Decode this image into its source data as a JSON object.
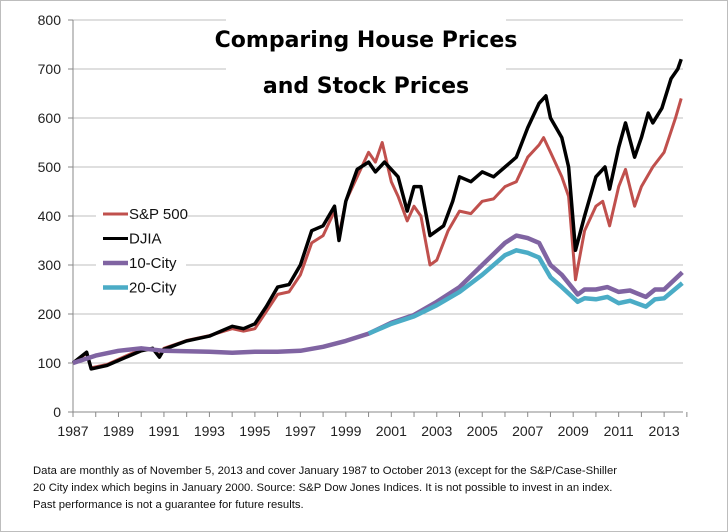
{
  "chart_data": {
    "type": "line",
    "title_lines": [
      "Comparing House Prices",
      "and Stock Prices"
    ],
    "xlabel": "",
    "ylabel": "",
    "xlim": [
      1987,
      2013.83
    ],
    "ylim": [
      0,
      800
    ],
    "x_ticks": [
      "1987",
      "1989",
      "1991",
      "1993",
      "1995",
      "1997",
      "1999",
      "2001",
      "2003",
      "2005",
      "2007",
      "2009",
      "2011",
      "2013"
    ],
    "y_ticks": [
      "0",
      "100",
      "200",
      "300",
      "400",
      "500",
      "600",
      "700",
      "800"
    ],
    "grid": true,
    "legend_position": "left-middle",
    "series": [
      {
        "name": "S&P 500",
        "color": "#c0504d",
        "points": [
          [
            1987,
            100
          ],
          [
            1987.6,
            120
          ],
          [
            1987.8,
            90
          ],
          [
            1988.5,
            97
          ],
          [
            1989.5,
            118
          ],
          [
            1990,
            126
          ],
          [
            1990.5,
            128
          ],
          [
            1990.8,
            115
          ],
          [
            1991,
            130
          ],
          [
            1992,
            146
          ],
          [
            1993,
            156
          ],
          [
            1994,
            170
          ],
          [
            1994.5,
            165
          ],
          [
            1995,
            170
          ],
          [
            1995.5,
            205
          ],
          [
            1996,
            240
          ],
          [
            1996.5,
            245
          ],
          [
            1997,
            280
          ],
          [
            1997.5,
            345
          ],
          [
            1998,
            360
          ],
          [
            1998.5,
            410
          ],
          [
            1998.7,
            360
          ],
          [
            1999,
            430
          ],
          [
            1999.5,
            480
          ],
          [
            2000,
            530
          ],
          [
            2000.3,
            510
          ],
          [
            2000.6,
            550
          ],
          [
            2001,
            470
          ],
          [
            2001.3,
            440
          ],
          [
            2001.7,
            390
          ],
          [
            2002,
            420
          ],
          [
            2002.3,
            400
          ],
          [
            2002.7,
            300
          ],
          [
            2003,
            310
          ],
          [
            2003.5,
            370
          ],
          [
            2004,
            410
          ],
          [
            2004.5,
            405
          ],
          [
            2005,
            430
          ],
          [
            2005.5,
            435
          ],
          [
            2006,
            460
          ],
          [
            2006.5,
            470
          ],
          [
            2007,
            520
          ],
          [
            2007.5,
            545
          ],
          [
            2007.7,
            560
          ],
          [
            2008,
            530
          ],
          [
            2008.5,
            480
          ],
          [
            2008.8,
            440
          ],
          [
            2009.1,
            270
          ],
          [
            2009.5,
            370
          ],
          [
            2010,
            420
          ],
          [
            2010.3,
            430
          ],
          [
            2010.6,
            380
          ],
          [
            2011,
            460
          ],
          [
            2011.3,
            495
          ],
          [
            2011.7,
            420
          ],
          [
            2012,
            460
          ],
          [
            2012.5,
            500
          ],
          [
            2013,
            530
          ],
          [
            2013.5,
            600
          ],
          [
            2013.75,
            640
          ]
        ]
      },
      {
        "name": "DJIA",
        "color": "#000000",
        "points": [
          [
            1987,
            100
          ],
          [
            1987.6,
            122
          ],
          [
            1987.8,
            88
          ],
          [
            1988.5,
            95
          ],
          [
            1989.5,
            115
          ],
          [
            1990,
            125
          ],
          [
            1990.5,
            130
          ],
          [
            1990.8,
            112
          ],
          [
            1991,
            128
          ],
          [
            1992,
            145
          ],
          [
            1993,
            155
          ],
          [
            1994,
            175
          ],
          [
            1994.5,
            170
          ],
          [
            1995,
            180
          ],
          [
            1995.5,
            215
          ],
          [
            1996,
            255
          ],
          [
            1996.5,
            260
          ],
          [
            1997,
            300
          ],
          [
            1997.5,
            370
          ],
          [
            1998,
            380
          ],
          [
            1998.5,
            420
          ],
          [
            1998.7,
            350
          ],
          [
            1999,
            430
          ],
          [
            1999.5,
            495
          ],
          [
            2000,
            510
          ],
          [
            2000.3,
            490
          ],
          [
            2000.7,
            510
          ],
          [
            2001,
            495
          ],
          [
            2001.3,
            480
          ],
          [
            2001.7,
            410
          ],
          [
            2002,
            460
          ],
          [
            2002.3,
            460
          ],
          [
            2002.7,
            360
          ],
          [
            2003,
            370
          ],
          [
            2003.3,
            380
          ],
          [
            2003.7,
            430
          ],
          [
            2004,
            480
          ],
          [
            2004.5,
            470
          ],
          [
            2005,
            490
          ],
          [
            2005.5,
            480
          ],
          [
            2006,
            500
          ],
          [
            2006.5,
            520
          ],
          [
            2007,
            580
          ],
          [
            2007.5,
            630
          ],
          [
            2007.8,
            645
          ],
          [
            2008,
            600
          ],
          [
            2008.5,
            560
          ],
          [
            2008.8,
            500
          ],
          [
            2009.1,
            330
          ],
          [
            2009.5,
            400
          ],
          [
            2010,
            480
          ],
          [
            2010.4,
            500
          ],
          [
            2010.6,
            455
          ],
          [
            2011,
            540
          ],
          [
            2011.3,
            590
          ],
          [
            2011.7,
            520
          ],
          [
            2012,
            560
          ],
          [
            2012.3,
            610
          ],
          [
            2012.5,
            590
          ],
          [
            2012.9,
            620
          ],
          [
            2013.3,
            680
          ],
          [
            2013.6,
            700
          ],
          [
            2013.75,
            720
          ]
        ]
      },
      {
        "name": "10-City",
        "color": "#8064a2",
        "points": [
          [
            1987,
            100
          ],
          [
            1988,
            115
          ],
          [
            1989,
            125
          ],
          [
            1990,
            130
          ],
          [
            1991,
            125
          ],
          [
            1992,
            124
          ],
          [
            1993,
            123
          ],
          [
            1994,
            121
          ],
          [
            1995,
            123
          ],
          [
            1996,
            123
          ],
          [
            1997,
            125
          ],
          [
            1998,
            133
          ],
          [
            1999,
            145
          ],
          [
            2000,
            160
          ],
          [
            2001,
            182
          ],
          [
            2002,
            198
          ],
          [
            2003,
            225
          ],
          [
            2004,
            255
          ],
          [
            2005,
            300
          ],
          [
            2006,
            345
          ],
          [
            2006.5,
            360
          ],
          [
            2007,
            355
          ],
          [
            2007.5,
            345
          ],
          [
            2008,
            300
          ],
          [
            2008.5,
            280
          ],
          [
            2009.2,
            240
          ],
          [
            2009.5,
            250
          ],
          [
            2010,
            250
          ],
          [
            2010.5,
            255
          ],
          [
            2011,
            245
          ],
          [
            2011.5,
            248
          ],
          [
            2012.2,
            235
          ],
          [
            2012.6,
            250
          ],
          [
            2013,
            250
          ],
          [
            2013.8,
            285
          ]
        ]
      },
      {
        "name": "20-City",
        "color": "#4bacc6",
        "points": [
          [
            2000,
            160
          ],
          [
            2001,
            180
          ],
          [
            2002,
            195
          ],
          [
            2003,
            218
          ],
          [
            2004,
            245
          ],
          [
            2005,
            280
          ],
          [
            2006,
            320
          ],
          [
            2006.5,
            330
          ],
          [
            2007,
            325
          ],
          [
            2007.5,
            315
          ],
          [
            2008,
            275
          ],
          [
            2008.5,
            255
          ],
          [
            2009.2,
            225
          ],
          [
            2009.5,
            232
          ],
          [
            2010,
            230
          ],
          [
            2010.5,
            235
          ],
          [
            2011,
            222
          ],
          [
            2011.5,
            227
          ],
          [
            2012.2,
            215
          ],
          [
            2012.6,
            230
          ],
          [
            2013,
            232
          ],
          [
            2013.8,
            263
          ]
        ]
      }
    ]
  },
  "footnote": [
    "Data are monthly as of November 5, 2013 and cover January 1987 to October 2013 (except for the S&P/Case-Shiller",
    "20 City index which begins in January 2000. Source: S&P Dow Jones Indices.  It is not possible to invest in an index.",
    "Past performance is not a guarantee for future results."
  ]
}
